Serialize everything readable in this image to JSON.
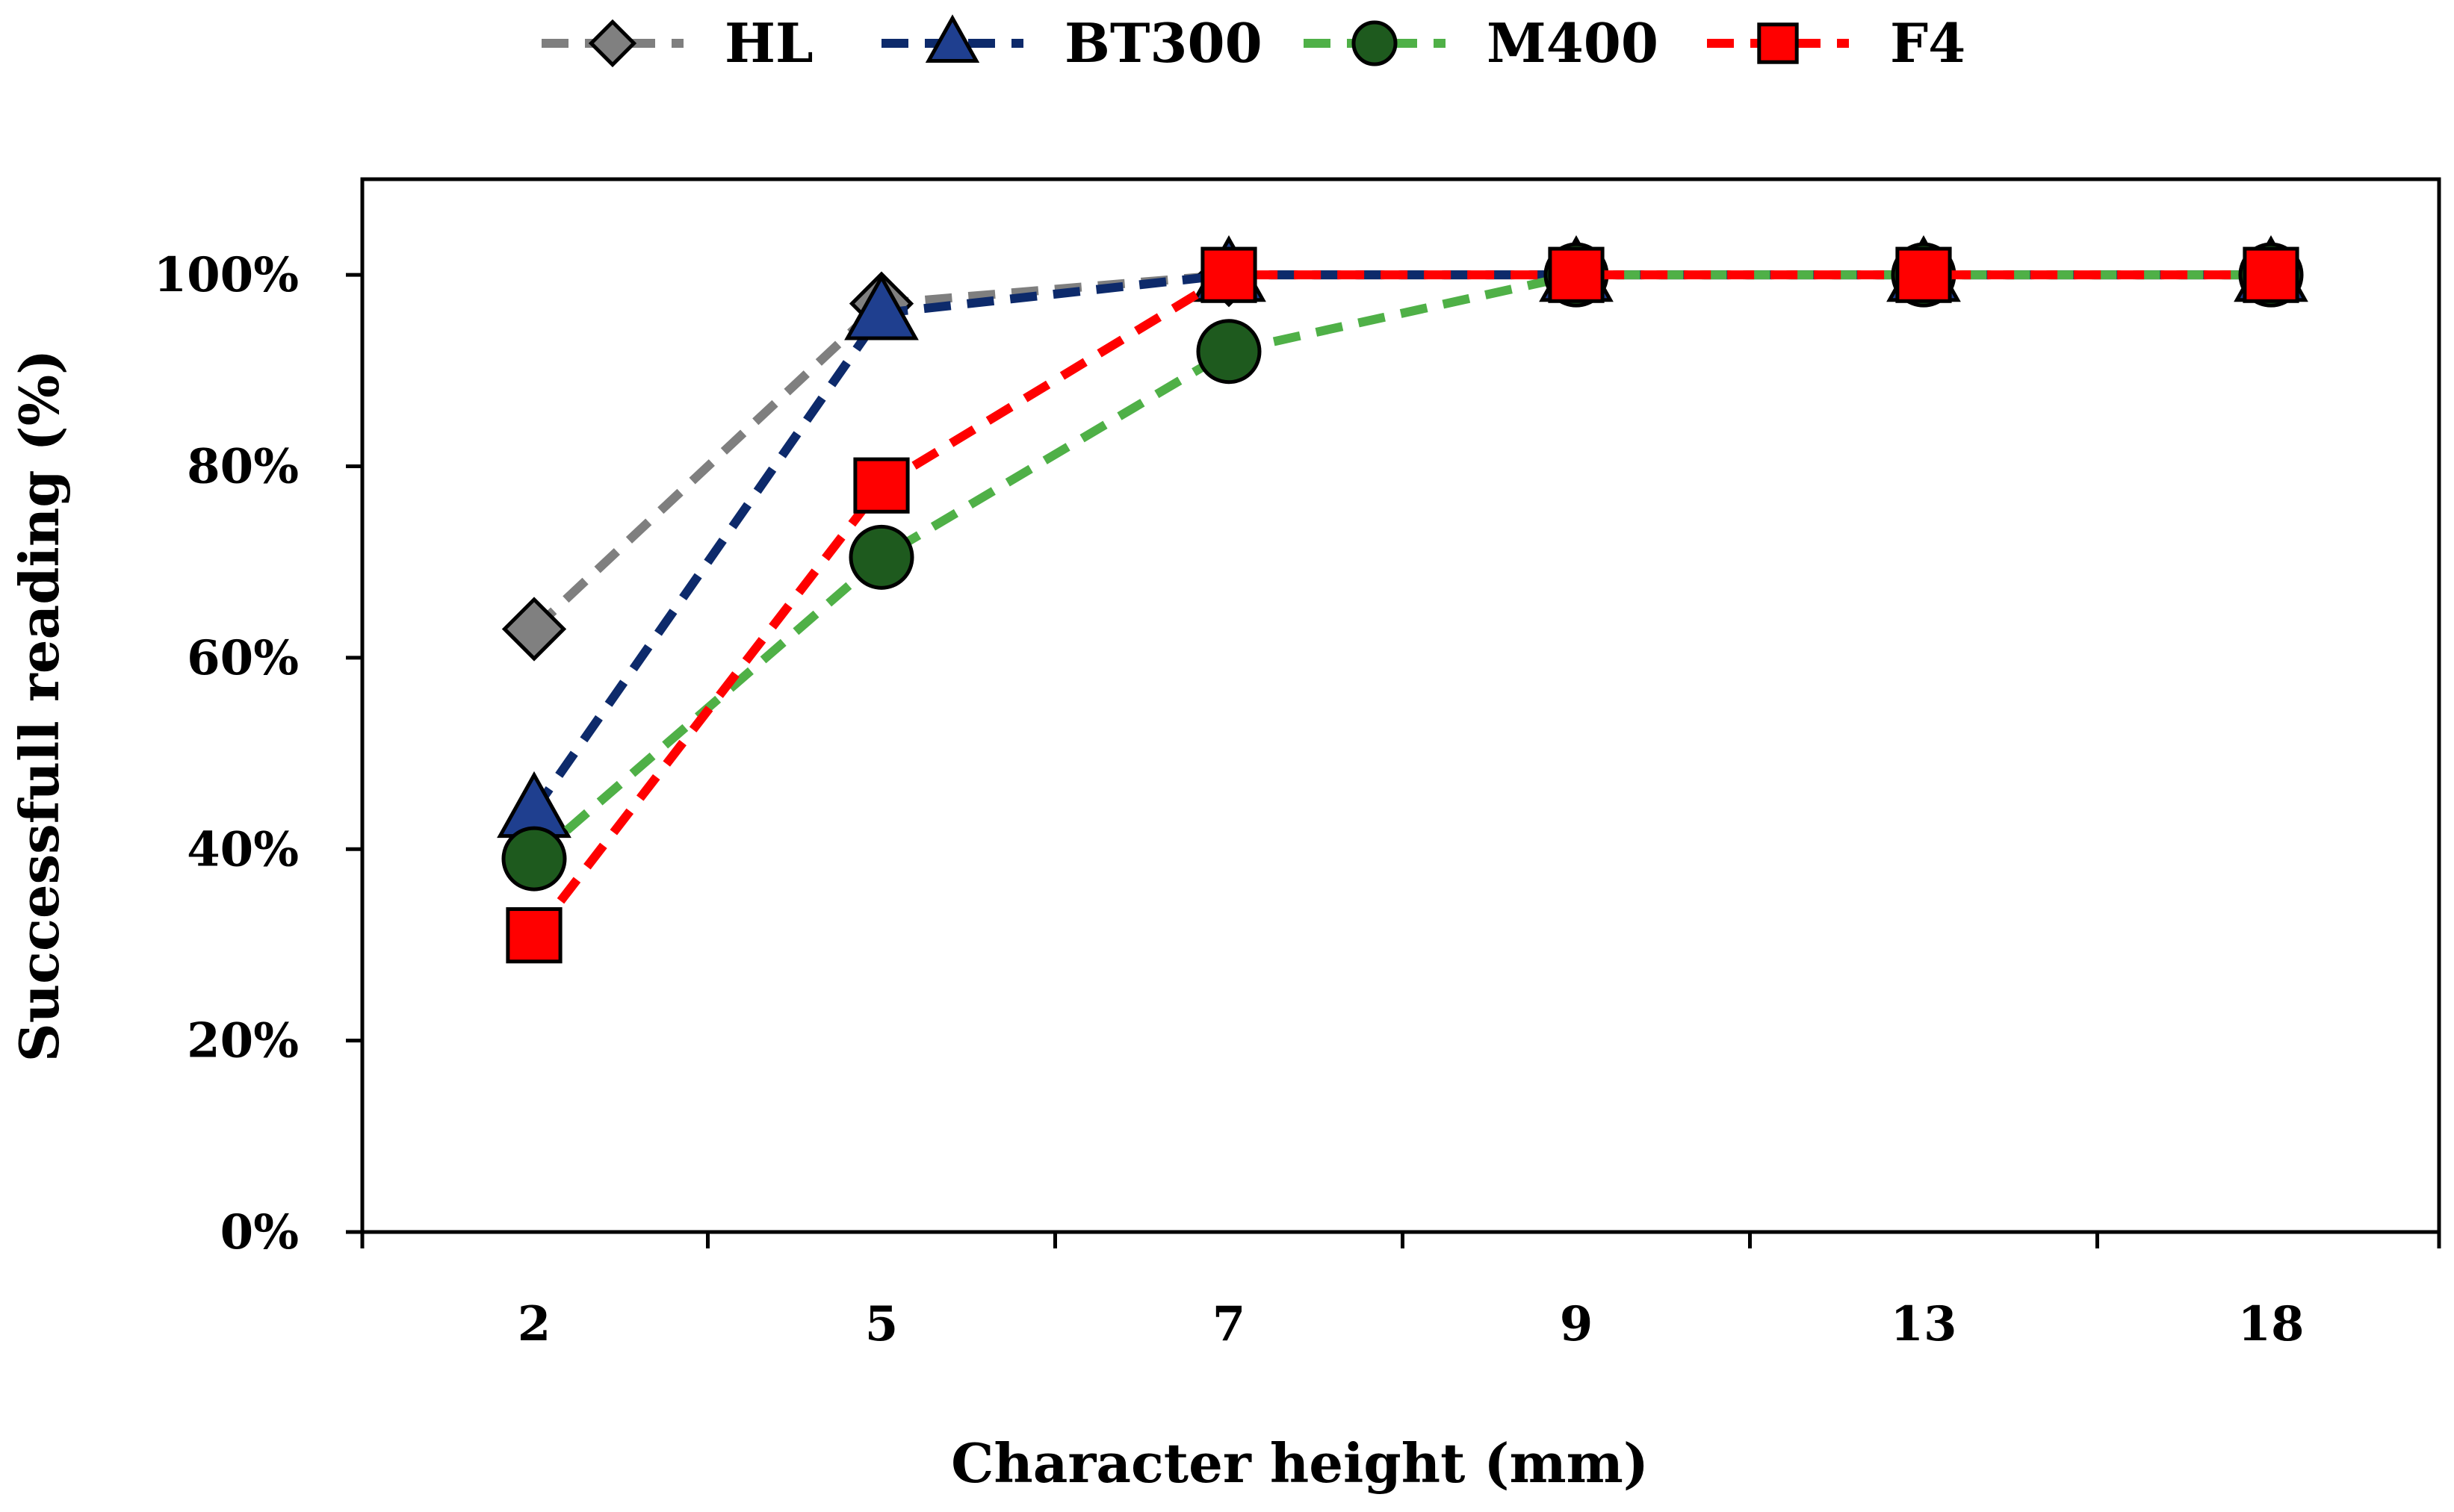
{
  "chart_data": {
    "type": "line",
    "title": "",
    "xlabel": "Character height (mm)",
    "ylabel": "Successfull reading (%)",
    "categories": [
      "2",
      "5",
      "7",
      "9",
      "13",
      "18"
    ],
    "ylim": [
      0,
      110
    ],
    "yticks": [
      0,
      20,
      40,
      60,
      80,
      100
    ],
    "ytick_labels": [
      "0%",
      "20%",
      "40%",
      "60%",
      "80%",
      "100%"
    ],
    "grid": false,
    "legend_position": "top",
    "series": [
      {
        "name": "HL",
        "values": [
          63,
          97,
          100,
          100,
          100,
          100
        ],
        "color": "#7f7f7f",
        "marker": "diamond",
        "marker_fill": "#808080"
      },
      {
        "name": "BT300",
        "values": [
          44,
          96,
          100,
          100,
          100,
          100
        ],
        "color": "#0d2a6b",
        "marker": "triangle",
        "marker_fill": "#1f3f8f"
      },
      {
        "name": "M400",
        "values": [
          39,
          70.5,
          92,
          100,
          100,
          100
        ],
        "color": "#4fb047",
        "marker": "circle",
        "marker_fill": "#1e5a1e"
      },
      {
        "name": "F4",
        "values": [
          31,
          78,
          100,
          100,
          100,
          100
        ],
        "color": "#ff0000",
        "marker": "square",
        "marker_fill": "#ff0000"
      }
    ]
  }
}
